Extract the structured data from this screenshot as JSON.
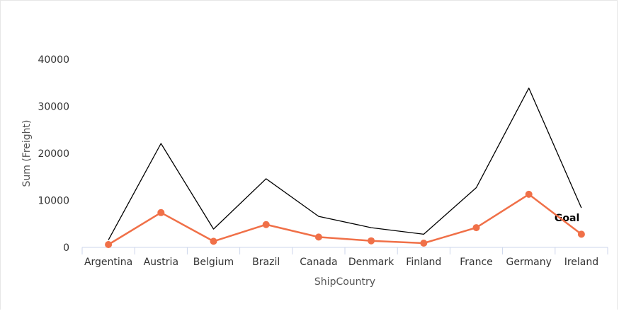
{
  "chart_data": {
    "type": "line",
    "categories": [
      "Argentina",
      "Austria",
      "Belgium",
      "Brazil",
      "Canada",
      "Denmark",
      "Finland",
      "France",
      "Germany",
      "Ireland"
    ],
    "series": [
      {
        "name": "",
        "color": "#f07048",
        "markers": true,
        "values": [
          600,
          7400,
          1300,
          4850,
          2200,
          1400,
          900,
          4200,
          11300,
          2800
        ]
      },
      {
        "name": "Goal",
        "color": "#000000",
        "markers": false,
        "values": [
          1600,
          22100,
          3900,
          14600,
          6600,
          4200,
          2800,
          12700,
          33900,
          8400
        ]
      }
    ],
    "xlabel": "ShipCountry",
    "ylabel": "Sum (Freight)",
    "ylim": [
      0,
      40000
    ],
    "yticks": [
      0,
      10000,
      20000,
      30000,
      40000
    ],
    "grid": false,
    "legend": "none"
  }
}
